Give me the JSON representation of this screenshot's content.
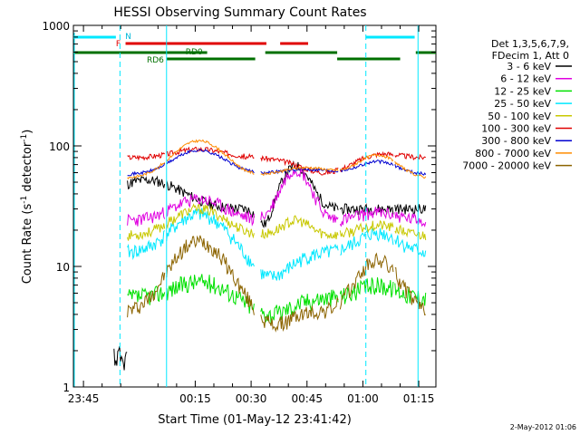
{
  "chart_data": {
    "type": "line",
    "title": "HESSI Observing Summary Count Rates",
    "xlabel": "Start Time (01-May-12 23:41:42)",
    "ylabel_main": "Count Rate (s",
    "ylabel_sup1": "-1",
    "ylabel_mid": " detector",
    "ylabel_sup2": "-1",
    "ylabel_end": ")",
    "yscale": "log",
    "ylim": [
      1,
      1000
    ],
    "xlim_min": [
      -17.7,
      79.6
    ],
    "x_ticks": [
      {
        "label": "23:45",
        "t": -15
      },
      {
        "label": "00:15",
        "t": 15
      },
      {
        "label": "00:30",
        "t": 30
      },
      {
        "label": "00:45",
        "t": 45
      },
      {
        "label": "01:00",
        "t": 60
      },
      {
        "label": "01:15",
        "t": 75
      }
    ],
    "y_ticks": [
      {
        "label": "1",
        "v": 1
      },
      {
        "label": "10",
        "v": 10
      },
      {
        "label": "100",
        "v": 100
      },
      {
        "label": "1000",
        "v": 1000
      }
    ],
    "legend_header": [
      "Det 1,3,5,6,7,9,",
      "FDecim 1, Att 0"
    ],
    "series": [
      {
        "name": "3 - 6 keV",
        "color": "#000000"
      },
      {
        "name": "6 - 12 keV",
        "color": "#e000e0"
      },
      {
        "name": "12 - 25 keV",
        "color": "#00e000"
      },
      {
        "name": "25 - 50 keV",
        "color": "#00e8ff"
      },
      {
        "name": "50 - 100 keV",
        "color": "#c8c800"
      },
      {
        "name": "100 - 300 keV",
        "color": "#e00000"
      },
      {
        "name": "300 - 800 keV",
        "color": "#0000d0"
      },
      {
        "name": "800 - 7000 keV",
        "color": "#ff8c00"
      },
      {
        "name": "7000 - 20000 keV",
        "color": "#8c6400"
      }
    ],
    "flag_labels": {
      "N": "N",
      "F": "F",
      "RD0": "RD0",
      "RD6": "RD6"
    },
    "night_boundaries_min": [
      -5.2,
      7.3,
      60.8,
      74.8
    ],
    "flag_segments": [
      {
        "flag": "N",
        "start": -17.7,
        "end": -6.3,
        "color": "#00e8ff"
      },
      {
        "flag": "N",
        "start": 60.8,
        "end": 73.9,
        "color": "#00e8ff"
      },
      {
        "flag": "F",
        "start": -3.7,
        "end": 34.1,
        "color": "#e00000"
      },
      {
        "flag": "F",
        "start": 37.8,
        "end": 45.3,
        "color": "#e00000"
      },
      {
        "flag": "RD0",
        "start": -17.7,
        "end": 18.2,
        "color": "#007000"
      },
      {
        "flag": "RD0",
        "start": 33.8,
        "end": 53.1,
        "color": "#007000"
      },
      {
        "flag": "RD6",
        "start": 7.3,
        "end": 31.1,
        "color": "#007000"
      },
      {
        "flag": "RD6",
        "start": 53.1,
        "end": 70.0,
        "color": "#007000"
      },
      {
        "flag": "RD0",
        "start": 74.2,
        "end": 79.6,
        "color": "#007000"
      }
    ],
    "day_intervals_min": [
      [
        -3.2,
        6.8
      ],
      [
        7.3,
        31.0
      ],
      [
        32.6,
        53.5
      ],
      [
        53.9,
        68.3
      ],
      [
        68.6,
        77.0
      ]
    ]
  },
  "footer": {
    "date": "2-May-2012 01:06"
  }
}
